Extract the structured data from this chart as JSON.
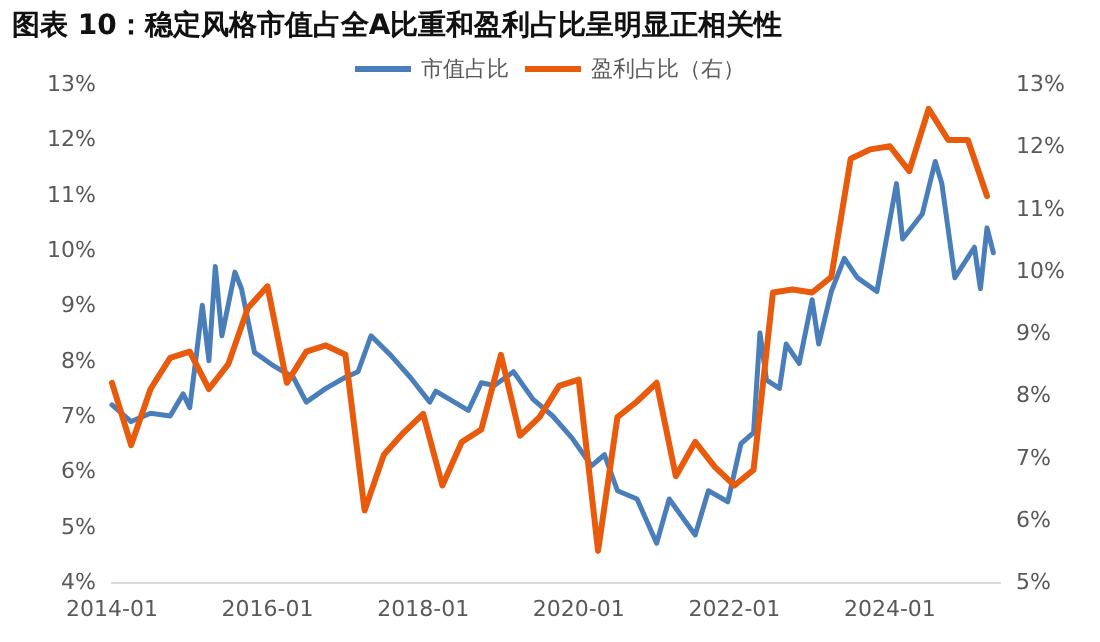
{
  "chart_data": {
    "type": "line",
    "title": "图表 10：稳定风格市值占全A比重和盈利占比呈明显正相关性",
    "series": [
      {
        "name": "市值占比",
        "color": "#4a7ebb",
        "x": [
          "2014-01",
          "2014-04",
          "2014-07",
          "2014-10",
          "2014-12",
          "2015-01",
          "2015-02",
          "2015-03",
          "2015-04",
          "2015-05",
          "2015-06",
          "2015-08",
          "2015-09",
          "2015-11",
          "2016-02",
          "2016-05",
          "2016-07",
          "2016-10",
          "2017-01",
          "2017-03",
          "2017-05",
          "2017-08",
          "2017-11",
          "2018-02",
          "2018-03",
          "2018-08",
          "2018-10",
          "2018-12",
          "2019-03",
          "2019-06",
          "2019-09",
          "2019-12",
          "2020-03",
          "2020-05",
          "2020-07",
          "2020-10",
          "2021-01",
          "2021-03",
          "2021-07",
          "2021-09",
          "2021-12",
          "2022-02",
          "2022-04",
          "2022-05",
          "2022-06",
          "2022-08",
          "2022-09",
          "2022-11",
          "2023-01",
          "2023-02",
          "2023-04",
          "2023-06",
          "2023-08",
          "2023-11",
          "2024-02",
          "2024-03",
          "2024-06",
          "2024-08",
          "2024-09",
          "2024-11",
          "2025-02",
          "2025-03",
          "2025-04",
          "2025-05"
        ],
        "values": [
          7.2,
          6.9,
          7.05,
          7.0,
          7.4,
          7.15,
          8.1,
          9.0,
          8.0,
          9.7,
          8.45,
          9.6,
          9.3,
          8.15,
          7.9,
          7.7,
          7.25,
          7.5,
          7.7,
          7.8,
          8.45,
          8.1,
          7.7,
          7.25,
          7.45,
          7.1,
          7.6,
          7.55,
          7.8,
          7.3,
          7.0,
          6.6,
          6.1,
          6.3,
          5.65,
          5.5,
          4.7,
          5.5,
          4.85,
          5.65,
          5.45,
          6.5,
          6.7,
          8.5,
          7.65,
          7.5,
          8.3,
          7.95,
          9.1,
          8.3,
          9.25,
          9.85,
          9.5,
          9.25,
          11.2,
          10.2,
          10.65,
          11.6,
          11.2,
          9.5,
          10.05,
          9.3,
          10.4,
          9.95
        ]
      },
      {
        "name": "盈利占比（右）",
        "color": "#e85a0c",
        "axis": "y2",
        "x": [
          "2014-01",
          "2014-04",
          "2014-07",
          "2014-10",
          "2015-01",
          "2015-04",
          "2015-07",
          "2015-10",
          "2016-01",
          "2016-04",
          "2016-07",
          "2016-10",
          "2017-01",
          "2017-04",
          "2017-07",
          "2017-10",
          "2018-01",
          "2018-04",
          "2018-07",
          "2018-10",
          "2019-01",
          "2019-04",
          "2019-07",
          "2019-10",
          "2020-01",
          "2020-04",
          "2020-07",
          "2020-10",
          "2021-01",
          "2021-04",
          "2021-07",
          "2021-10",
          "2022-01",
          "2022-04",
          "2022-07",
          "2022-10",
          "2023-01",
          "2023-04",
          "2023-07",
          "2023-10",
          "2024-01",
          "2024-04",
          "2024-07",
          "2024-10",
          "2025-01",
          "2025-04"
        ],
        "values": [
          8.2,
          7.2,
          8.1,
          8.6,
          8.7,
          8.1,
          8.5,
          9.4,
          9.75,
          8.2,
          8.7,
          8.8,
          8.65,
          6.15,
          7.05,
          7.4,
          7.7,
          6.55,
          7.25,
          7.45,
          8.65,
          7.35,
          7.65,
          8.15,
          8.25,
          5.5,
          7.65,
          7.9,
          8.2,
          6.7,
          7.25,
          6.85,
          6.55,
          6.8,
          9.65,
          9.7,
          9.65,
          9.9,
          11.8,
          11.95,
          12.0,
          11.6,
          12.6,
          12.1,
          12.1,
          11.2
        ]
      }
    ],
    "xlim": [
      "2014-01",
      "2025-06"
    ],
    "xticks": [
      {
        "value": "2014-01",
        "label": "2014-01"
      },
      {
        "value": "2016-01",
        "label": "2016-01"
      },
      {
        "value": "2018-01",
        "label": "2018-01"
      },
      {
        "value": "2020-01",
        "label": "2020-01"
      },
      {
        "value": "2022-01",
        "label": "2022-01"
      },
      {
        "value": "2024-01",
        "label": "2024-01"
      }
    ],
    "ylim": [
      4,
      13
    ],
    "yticks": [
      {
        "value": 4,
        "label": "4%"
      },
      {
        "value": 5,
        "label": "5%"
      },
      {
        "value": 6,
        "label": "6%"
      },
      {
        "value": 7,
        "label": "7%"
      },
      {
        "value": 8,
        "label": "8%"
      },
      {
        "value": 9,
        "label": "9%"
      },
      {
        "value": 10,
        "label": "10%"
      },
      {
        "value": 11,
        "label": "11%"
      },
      {
        "value": 12,
        "label": "12%"
      },
      {
        "value": 13,
        "label": "13%"
      }
    ],
    "y2lim": [
      5,
      13
    ],
    "y2ticks": [
      {
        "value": 5,
        "label": "5%"
      },
      {
        "value": 6,
        "label": "6%"
      },
      {
        "value": 7,
        "label": "7%"
      },
      {
        "value": 8,
        "label": "8%"
      },
      {
        "value": 9,
        "label": "9%"
      },
      {
        "value": 10,
        "label": "10%"
      },
      {
        "value": 11,
        "label": "11%"
      },
      {
        "value": 12,
        "label": "12%"
      },
      {
        "value": 13,
        "label": "13%"
      }
    ],
    "legend": "top",
    "grid": false,
    "marker": "none",
    "line_style": "solid"
  }
}
